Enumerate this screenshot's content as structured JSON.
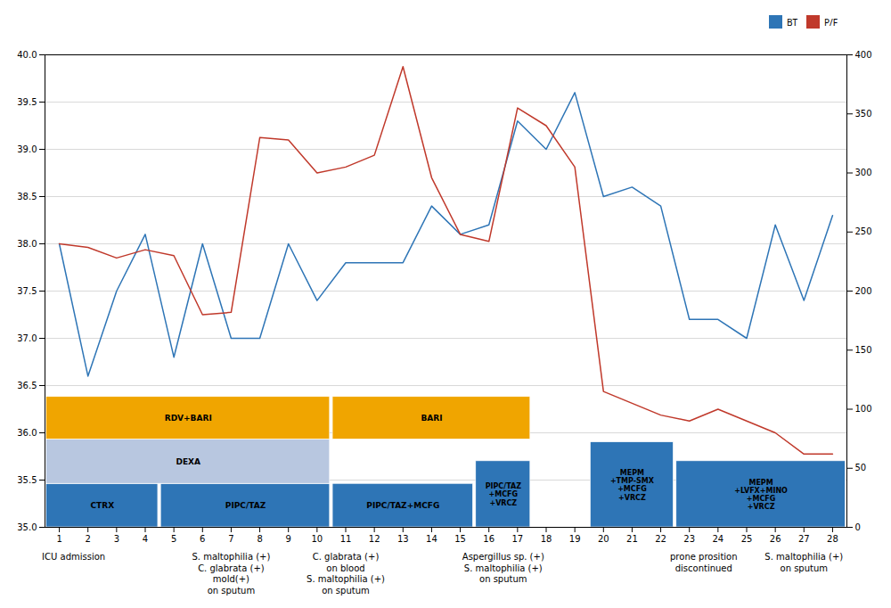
{
  "chart_data": {
    "type": "line",
    "x": [
      1,
      2,
      3,
      4,
      5,
      6,
      7,
      8,
      9,
      10,
      11,
      12,
      13,
      14,
      15,
      16,
      17,
      18,
      19,
      20,
      21,
      22,
      23,
      24,
      25,
      26,
      27,
      28
    ],
    "xlim": [
      0.5,
      28.5
    ],
    "xticks": [
      1,
      2,
      3,
      4,
      5,
      6,
      7,
      8,
      9,
      10,
      11,
      12,
      13,
      14,
      15,
      16,
      17,
      18,
      19,
      20,
      21,
      22,
      23,
      24,
      25,
      26,
      27,
      28
    ],
    "ylim": [
      35.0,
      40.0
    ],
    "yticks": [
      {
        "value": 35.0,
        "label": "35.0"
      },
      35.5,
      {
        "value": 36.0,
        "label": "36.0"
      },
      36.5,
      {
        "value": 37.0,
        "label": "37.0"
      },
      37.5,
      {
        "value": 38.0,
        "label": "38.0"
      },
      38.5,
      {
        "value": 39.0,
        "label": "39.0"
      },
      39.5,
      {
        "value": 40.0,
        "label": "40.0"
      }
    ],
    "y2lim": [
      0,
      400
    ],
    "y2ticks": [
      0,
      50,
      100,
      150,
      200,
      250,
      300,
      350,
      400
    ],
    "grid": true,
    "legend": "upper right",
    "series": [
      {
        "name": "BT",
        "color": "#2e75b6",
        "values": [
          38.0,
          36.6,
          37.5,
          38.1,
          36.8,
          38.0,
          37.0,
          37.0,
          38.0,
          37.4,
          37.8,
          37.8,
          37.8,
          38.4,
          38.1,
          38.2,
          39.3,
          39.0,
          39.6,
          38.5,
          38.6,
          38.4,
          37.2,
          37.2,
          37.0,
          38.2,
          37.4,
          38.3
        ]
      },
      {
        "name": "P/F",
        "color": "#c0392b",
        "axis": "y2",
        "values": [
          240,
          237,
          228,
          235,
          230,
          180,
          182,
          330,
          328,
          300,
          305,
          315,
          390,
          296,
          248,
          242,
          355,
          340,
          305,
          115,
          105,
          95,
          90,
          100,
          90,
          80,
          62,
          62
        ]
      }
    ],
    "boxes": [
      {
        "label": "CTRX",
        "x_start": 1,
        "x_end": 4,
        "y_bottom": 35.0,
        "y_top": 35.46,
        "color": "#2e75b6"
      },
      {
        "label": "PIPC/TAZ",
        "x_start": 5,
        "x_end": 10,
        "y_bottom": 35.0,
        "y_top": 35.46,
        "color": "#2e75b6"
      },
      {
        "label": "PIPC/TAZ+MCFG",
        "x_start": 11,
        "x_end": 15,
        "y_bottom": 35.0,
        "y_top": 35.46,
        "color": "#2e75b6"
      },
      {
        "label": "PIPC/TAZ\n+MCFG\n+VRCZ",
        "x_start": 16,
        "x_end": 17,
        "y_bottom": 35.0,
        "y_top": 35.7,
        "color": "#2e75b6"
      },
      {
        "label": "MEPM\n+TMP-SMX\n+MCFG\n+VRCZ",
        "x_start": 20,
        "x_end": 22,
        "y_bottom": 35.0,
        "y_top": 35.9,
        "color": "#2e75b6"
      },
      {
        "label": "MEPM\n+LVFX+MINO\n+MCFG\n+VRCZ",
        "x_start": 23,
        "x_end": 28,
        "y_bottom": 35.0,
        "y_top": 35.7,
        "color": "#2e75b6"
      },
      {
        "label": "DEXA",
        "x_start": 1,
        "x_end": 10,
        "y_bottom": 35.46,
        "y_top": 35.93,
        "color": "#b8c7e0"
      },
      {
        "label": "RDV+BARI",
        "x_start": 1,
        "x_end": 10,
        "y_bottom": 35.93,
        "y_top": 36.38,
        "color": "#f0a500"
      },
      {
        "label": "BARI",
        "x_start": 11,
        "x_end": 17,
        "y_bottom": 35.93,
        "y_top": 36.38,
        "color": "#f0a500"
      }
    ],
    "annotations": [
      {
        "x": 1.5,
        "text": "ICU admission"
      },
      {
        "x": 7,
        "text": "S. maltophilia (+)\nC. glabrata (+)\nmold(+)\non sputum"
      },
      {
        "x": 11,
        "text": "C. glabrata (+)\non blood\nS. maltophilia (+)\non sputum"
      },
      {
        "x": 16.5,
        "text": "Aspergillus sp. (+)\nS. maltophilia (+)\non sputum"
      },
      {
        "x": 23.5,
        "text": "prone prosition\ndiscontinued"
      },
      {
        "x": 27,
        "text": "S. maltophilia (+)\non sputum"
      }
    ]
  }
}
